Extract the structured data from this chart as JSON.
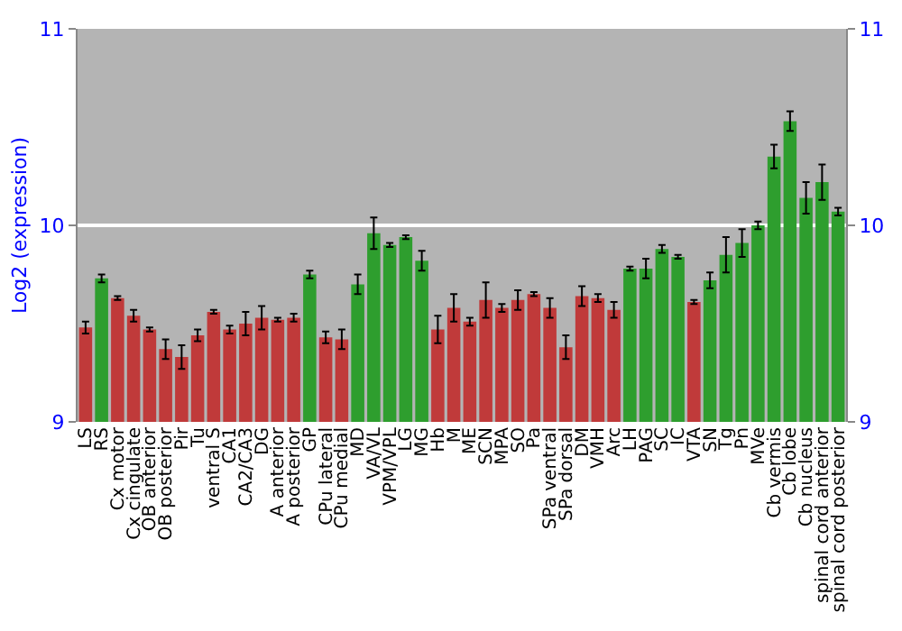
{
  "chart_data": {
    "type": "bar",
    "ylabel": "Log2 (expression)",
    "categories": [
      "LS",
      "RS",
      "Cx motor",
      "Cx cingulate",
      "OB anterior",
      "OB posterior",
      "Pir",
      "Tu",
      "ventral S",
      "CA1",
      "CA2/CA3",
      "DG",
      "A anterior",
      "A posterior",
      "GP",
      "CPu lateral",
      "CPu medial",
      "MD",
      "VA/VL",
      "VPM/VPL",
      "LG",
      "MG",
      "Hb",
      "M",
      "ME",
      "SCN",
      "MPA",
      "SO",
      "Pa",
      "SPa ventral",
      "SPa dorsal",
      "DM",
      "VMH",
      "Arc",
      "LH",
      "PAG",
      "SC",
      "IC",
      "VTA",
      "SN",
      "Tg",
      "Pn",
      "MVe",
      "Cb vermis",
      "Cb lobe",
      "Cb nucleus",
      "spinal cord anterior",
      "spinal cord posterior"
    ],
    "values": [
      9.48,
      9.73,
      9.63,
      9.54,
      9.47,
      9.37,
      9.33,
      9.44,
      9.56,
      9.47,
      9.5,
      9.53,
      9.52,
      9.53,
      9.75,
      9.43,
      9.42,
      9.7,
      9.96,
      9.9,
      9.94,
      9.82,
      9.47,
      9.58,
      9.51,
      9.62,
      9.58,
      9.62,
      9.65,
      9.58,
      9.38,
      9.64,
      9.63,
      9.57,
      9.78,
      9.78,
      9.88,
      9.84,
      9.61,
      9.72,
      9.85,
      9.91,
      10.0,
      10.35,
      10.53,
      10.14,
      10.22,
      10.07
    ],
    "errors": [
      0.03,
      0.02,
      0.01,
      0.03,
      0.01,
      0.05,
      0.06,
      0.03,
      0.01,
      0.02,
      0.06,
      0.06,
      0.01,
      0.02,
      0.02,
      0.03,
      0.05,
      0.05,
      0.08,
      0.01,
      0.01,
      0.05,
      0.07,
      0.07,
      0.02,
      0.09,
      0.02,
      0.05,
      0.01,
      0.05,
      0.06,
      0.05,
      0.02,
      0.04,
      0.01,
      0.05,
      0.02,
      0.01,
      0.01,
      0.04,
      0.09,
      0.07,
      0.02,
      0.06,
      0.05,
      0.08,
      0.09,
      0.02
    ],
    "colors": [
      "#c03a3a",
      "#2e9e2e",
      "#c03a3a",
      "#c03a3a",
      "#c03a3a",
      "#c03a3a",
      "#c03a3a",
      "#c03a3a",
      "#c03a3a",
      "#c03a3a",
      "#c03a3a",
      "#c03a3a",
      "#c03a3a",
      "#c03a3a",
      "#2e9e2e",
      "#c03a3a",
      "#c03a3a",
      "#2e9e2e",
      "#2e9e2e",
      "#2e9e2e",
      "#2e9e2e",
      "#2e9e2e",
      "#c03a3a",
      "#c03a3a",
      "#c03a3a",
      "#c03a3a",
      "#c03a3a",
      "#c03a3a",
      "#c03a3a",
      "#c03a3a",
      "#c03a3a",
      "#c03a3a",
      "#c03a3a",
      "#c03a3a",
      "#2e9e2e",
      "#2e9e2e",
      "#2e9e2e",
      "#2e9e2e",
      "#c03a3a",
      "#2e9e2e",
      "#2e9e2e",
      "#2e9e2e",
      "#2e9e2e",
      "#2e9e2e",
      "#2e9e2e",
      "#2e9e2e",
      "#2e9e2e",
      "#2e9e2e"
    ],
    "ylim": [
      9,
      11
    ],
    "yticks": [
      9,
      10,
      11
    ],
    "y2lim": [
      9,
      11
    ],
    "y2ticks": [
      9,
      10,
      11
    ],
    "grid": "y"
  }
}
